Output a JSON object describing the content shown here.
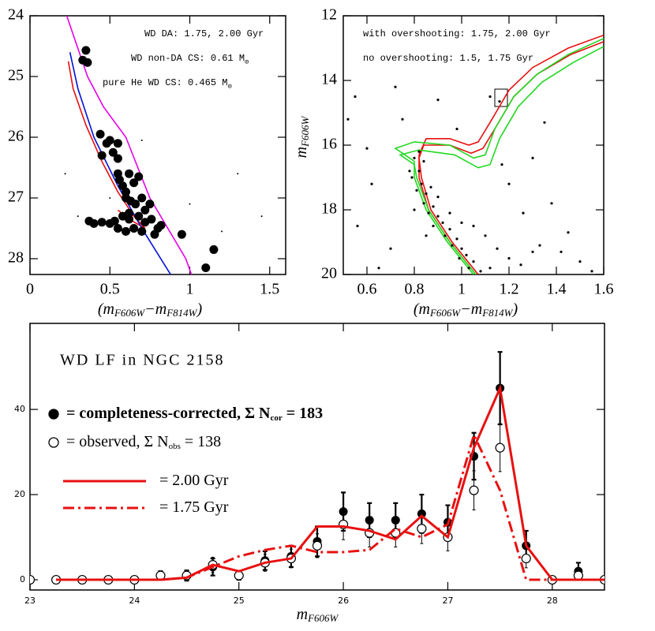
{
  "chart_data": [
    {
      "type": "scatter",
      "xlim": [
        0,
        1.6
      ],
      "ylim": [
        24,
        28.26
      ],
      "y_inverted": true,
      "xticks": [
        0,
        0.5,
        1,
        1.5
      ],
      "yticks": [
        24,
        25,
        26,
        27,
        28
      ],
      "xlabel_parts": [
        "(m",
        "F606W",
        "−m",
        "F814W",
        ")"
      ],
      "series": [
        {
          "name_parts": [
            "WD DA: 1.75, 2.00 Gyr"
          ],
          "color": "#e81010",
          "mode": "line",
          "x": [
            0.24,
            0.27,
            0.35,
            0.45,
            0.55,
            0.65,
            0.72,
            0.62,
            0.55
          ],
          "y": [
            24.75,
            25.2,
            25.8,
            26.4,
            26.9,
            27.3,
            27.5,
            27.35,
            27.2
          ]
        },
        {
          "name_parts": [
            "WD non-DA CS: 0.61 M",
            "⊙"
          ],
          "color": "#0010d8",
          "mode": "line",
          "x": [
            0.25,
            0.3,
            0.4,
            0.55,
            0.7,
            0.88
          ],
          "y": [
            24.6,
            25.2,
            26.0,
            26.8,
            27.5,
            28.26
          ]
        },
        {
          "name_parts": [
            "pure He WD CS: 0.465 M",
            "⊙"
          ],
          "color": "#e800e8",
          "mode": "line",
          "x": [
            0.23,
            0.36,
            0.46,
            0.6,
            0.75,
            0.975,
            1.01
          ],
          "y": [
            24.0,
            25.0,
            25.5,
            26.0,
            27.0,
            28.0,
            28.26
          ]
        },
        {
          "color": "#000000",
          "mode": "points",
          "marker": "large",
          "x": [
            0.35,
            0.33,
            0.36,
            0.44,
            0.45,
            0.48,
            0.5,
            0.52,
            0.55,
            0.55,
            0.55,
            0.56,
            0.58,
            0.6,
            0.62,
            0.65,
            0.68,
            0.6,
            0.63,
            0.66,
            0.7,
            0.72,
            0.75,
            0.58,
            0.62,
            0.68,
            0.72,
            0.76,
            0.8,
            0.37,
            0.4,
            0.45,
            0.5,
            0.53,
            0.55,
            0.6,
            0.65,
            0.7,
            0.78,
            0.95,
            1.15,
            1.1,
            0.82,
            0.62
          ],
          "y": [
            24.57,
            24.73,
            24.77,
            25.95,
            26.3,
            26.1,
            26.05,
            26.25,
            26.1,
            26.35,
            26.6,
            26.7,
            26.8,
            26.9,
            26.6,
            26.75,
            26.65,
            27.0,
            27.05,
            27.1,
            27.0,
            27.2,
            27.1,
            27.3,
            27.35,
            27.3,
            27.4,
            27.35,
            27.5,
            27.38,
            27.42,
            27.4,
            27.42,
            27.38,
            27.5,
            27.55,
            27.5,
            27.55,
            27.6,
            27.6,
            27.85,
            28.15,
            27.45,
            27.25
          ]
        },
        {
          "color": "#000000",
          "mode": "points",
          "marker": "small",
          "x": [
            0.22,
            0.3,
            0.7,
            1.3,
            1.0,
            1.2,
            1.45,
            0.6,
            0.5
          ],
          "y": [
            26.6,
            27.3,
            26.05,
            26.6,
            27.1,
            27.55,
            27.3,
            27.55,
            27.0
          ]
        }
      ]
    },
    {
      "type": "scatter",
      "xlim": [
        0.5,
        1.6
      ],
      "ylim": [
        12,
        20
      ],
      "y_inverted": true,
      "xticks": [
        0.6,
        0.8,
        1,
        1.2,
        1.4,
        1.6
      ],
      "yticks": [
        12,
        14,
        16,
        18,
        20
      ],
      "xlabel_parts": [
        "(m",
        "F606W",
        "−m",
        "F814W",
        ")"
      ],
      "ylabel_parts": [
        "m",
        "F606W"
      ],
      "series": [
        {
          "name_parts": [
            "with overshooting: 1.75, 2.00 Gyr"
          ],
          "color": "#e81010",
          "mode": "line",
          "x": [
            1.06,
            0.95,
            0.86,
            0.82,
            0.82,
            0.85,
            0.95,
            1.03,
            1.07,
            1.12,
            1.2,
            1.3,
            1.45,
            1.6
          ],
          "y": [
            20,
            19,
            18,
            17,
            16.3,
            15.8,
            15.8,
            16.0,
            15.9,
            15.3,
            14.3,
            13.6,
            13.0,
            12.6
          ]
        },
        {
          "color": "#e81010",
          "mode": "line",
          "x": [
            1.07,
            0.96,
            0.87,
            0.83,
            0.82,
            0.84,
            0.95,
            1.04,
            1.09,
            1.14,
            1.22,
            1.32,
            1.46,
            1.6
          ],
          "y": [
            20,
            19,
            18,
            17,
            16.4,
            16.0,
            16.0,
            16.25,
            16.1,
            15.5,
            14.5,
            13.8,
            13.2,
            12.8
          ]
        },
        {
          "name_parts": [
            "no overshooting: 1.5, 1.75 Gyr"
          ],
          "color": "#22d822",
          "mode": "line",
          "x": [
            1.05,
            0.94,
            0.85,
            0.8,
            0.8,
            0.72,
            0.8,
            0.95,
            1.05,
            1.1,
            1.14,
            1.22,
            1.32,
            1.45,
            1.6
          ],
          "y": [
            20,
            19,
            18,
            17,
            16.5,
            16.1,
            15.9,
            16.0,
            16.4,
            16.3,
            15.5,
            14.5,
            13.8,
            13.2,
            12.7
          ]
        },
        {
          "color": "#22d822",
          "mode": "line",
          "x": [
            1.06,
            0.95,
            0.86,
            0.81,
            0.8,
            0.74,
            0.82,
            0.97,
            1.07,
            1.12,
            1.16,
            1.24,
            1.34,
            1.47,
            1.6
          ],
          "y": [
            20,
            19,
            18,
            17,
            16.6,
            16.3,
            16.15,
            16.3,
            16.7,
            16.6,
            15.8,
            14.8,
            14.05,
            13.45,
            12.95
          ]
        },
        {
          "color": "#000000",
          "mode": "points",
          "marker": "dot",
          "x": [
            0.8,
            0.82,
            0.79,
            0.83,
            0.81,
            0.85,
            0.84,
            0.88,
            0.86,
            0.9,
            0.92,
            0.88,
            0.95,
            0.93,
            0.98,
            0.96,
            1.0,
            1.02,
            0.99,
            1.05,
            1.03,
            1.08,
            1.1,
            1.15,
            1.2,
            1.05,
            1.12,
            1.25,
            1.3,
            0.95,
            1.0,
            0.87,
            0.9,
            0.78,
            0.8,
            0.85,
            0.82,
            0.84,
            0.55,
            0.52,
            0.6,
            0.62,
            0.56,
            0.7,
            0.65,
            0.72,
            0.9,
            1.3,
            1.35,
            1.38,
            1.45,
            1.5,
            1.26,
            1.33,
            1.2,
            1.17,
            0.98,
            0.75,
            1.12,
            1.16,
            1.55,
            1.42
          ],
          "y": [
            16.4,
            16.8,
            17.0,
            17.2,
            17.4,
            17.5,
            17.8,
            17.9,
            18.1,
            18.2,
            18.4,
            18.5,
            18.6,
            18.8,
            18.9,
            19.1,
            19.2,
            19.4,
            19.5,
            19.6,
            19.8,
            19.9,
            18.8,
            19.2,
            19.5,
            18.5,
            19.8,
            19.7,
            19.3,
            18.1,
            18.4,
            17.3,
            17.6,
            16.8,
            18.0,
            18.8,
            16.2,
            16.5,
            14.5,
            15.2,
            16.1,
            17.2,
            18.5,
            19.2,
            19.8,
            14.2,
            14.6,
            16.4,
            15.3,
            17.8,
            18.7,
            19.6,
            18.1,
            19.1,
            17.2,
            16.6,
            15.5,
            15.2,
            14.5,
            14.65,
            19.9,
            19.3
          ]
        }
      ]
    },
    {
      "type": "errorbar",
      "title": "WD LF in NGC 2158",
      "xlim": [
        23,
        28.5
      ],
      "ylim": [
        -2.4,
        60.2
      ],
      "xticks": [
        23,
        24,
        25,
        26,
        27,
        28
      ],
      "yticks": [
        0,
        20,
        40
      ],
      "xlabel_parts": [
        "m",
        "F606W"
      ],
      "series": [
        {
          "name_parts": [
            "= completeness-corrected, Σ N",
            "cor",
            " = 183"
          ],
          "marker": "filled",
          "color": "#000000",
          "mode": "points",
          "x": [
            23,
            23.25,
            23.5,
            23.75,
            24,
            24.25,
            24.5,
            24.75,
            25,
            25.25,
            25.5,
            25.75,
            26,
            26.25,
            26.5,
            26.75,
            27,
            27.25,
            27.5,
            27.75,
            28,
            28.25,
            28.5
          ],
          "values": [
            0,
            0,
            0,
            0,
            0,
            1,
            1,
            3,
            1,
            4.5,
            5.5,
            9,
            16,
            14,
            14,
            15.5,
            13.5,
            29,
            45,
            8,
            0,
            2,
            0
          ],
          "errors": [
            0,
            0,
            0,
            0,
            0,
            1,
            1.2,
            2,
            1,
            2.2,
            2.5,
            3.5,
            4.5,
            4,
            4,
            4.5,
            4,
            5.5,
            8.5,
            3.5,
            0,
            2,
            0
          ]
        },
        {
          "name_parts": [
            "= observed, Σ N",
            "obs",
            " = 138"
          ],
          "marker": "open",
          "color": "#000000",
          "mode": "points",
          "x": [
            23,
            23.25,
            23.5,
            23.75,
            24,
            24.25,
            24.5,
            24.75,
            25,
            25.25,
            25.5,
            25.75,
            26,
            26.25,
            26.5,
            26.75,
            27,
            27.25,
            27.5,
            27.75,
            28,
            28.25,
            28.5
          ],
          "values": [
            0,
            0,
            0,
            0,
            0,
            1,
            1,
            3.5,
            1,
            4,
            5,
            8,
            13,
            11,
            11,
            12,
            10,
            21,
            31,
            5,
            0,
            1,
            0
          ],
          "errors": [
            0,
            0,
            0,
            0,
            0,
            1,
            1,
            1.8,
            1,
            2,
            2.2,
            2.8,
            3.6,
            3.3,
            3.3,
            3.5,
            3.2,
            4.6,
            5.6,
            2.2,
            0,
            1,
            0
          ]
        },
        {
          "name_parts": [
            "= 2.00 Gyr"
          ],
          "color": "#e81010",
          "mode": "line",
          "dash": "solid",
          "x": [
            23.25,
            23.5,
            23.75,
            24,
            24.25,
            24.5,
            24.75,
            25,
            25.25,
            25.5,
            25.75,
            26,
            26.25,
            26.5,
            26.75,
            27,
            27.25,
            27.5,
            27.75,
            28,
            28.25,
            28.5
          ],
          "values": [
            0,
            0,
            0,
            0,
            0,
            0.5,
            3.5,
            2,
            4,
            5,
            12.5,
            12.5,
            11.5,
            9.5,
            15,
            10,
            31,
            45,
            8,
            0,
            0,
            0
          ]
        },
        {
          "name_parts": [
            "= 1.75 Gyr"
          ],
          "color": "#e81010",
          "mode": "line",
          "dash": "dashdot",
          "x": [
            23.25,
            23.5,
            23.75,
            24,
            24.25,
            24.5,
            24.75,
            25,
            25.25,
            25.5,
            25.75,
            26,
            26.25,
            26.5,
            26.75,
            27,
            27.25,
            27.5,
            27.75,
            28,
            28.25,
            28.5
          ],
          "values": [
            0,
            0,
            0,
            0,
            0,
            0.5,
            3,
            5.5,
            7,
            8,
            6.5,
            6.5,
            7,
            12,
            10,
            13,
            34,
            21,
            0,
            0,
            0,
            0
          ]
        }
      ]
    }
  ]
}
